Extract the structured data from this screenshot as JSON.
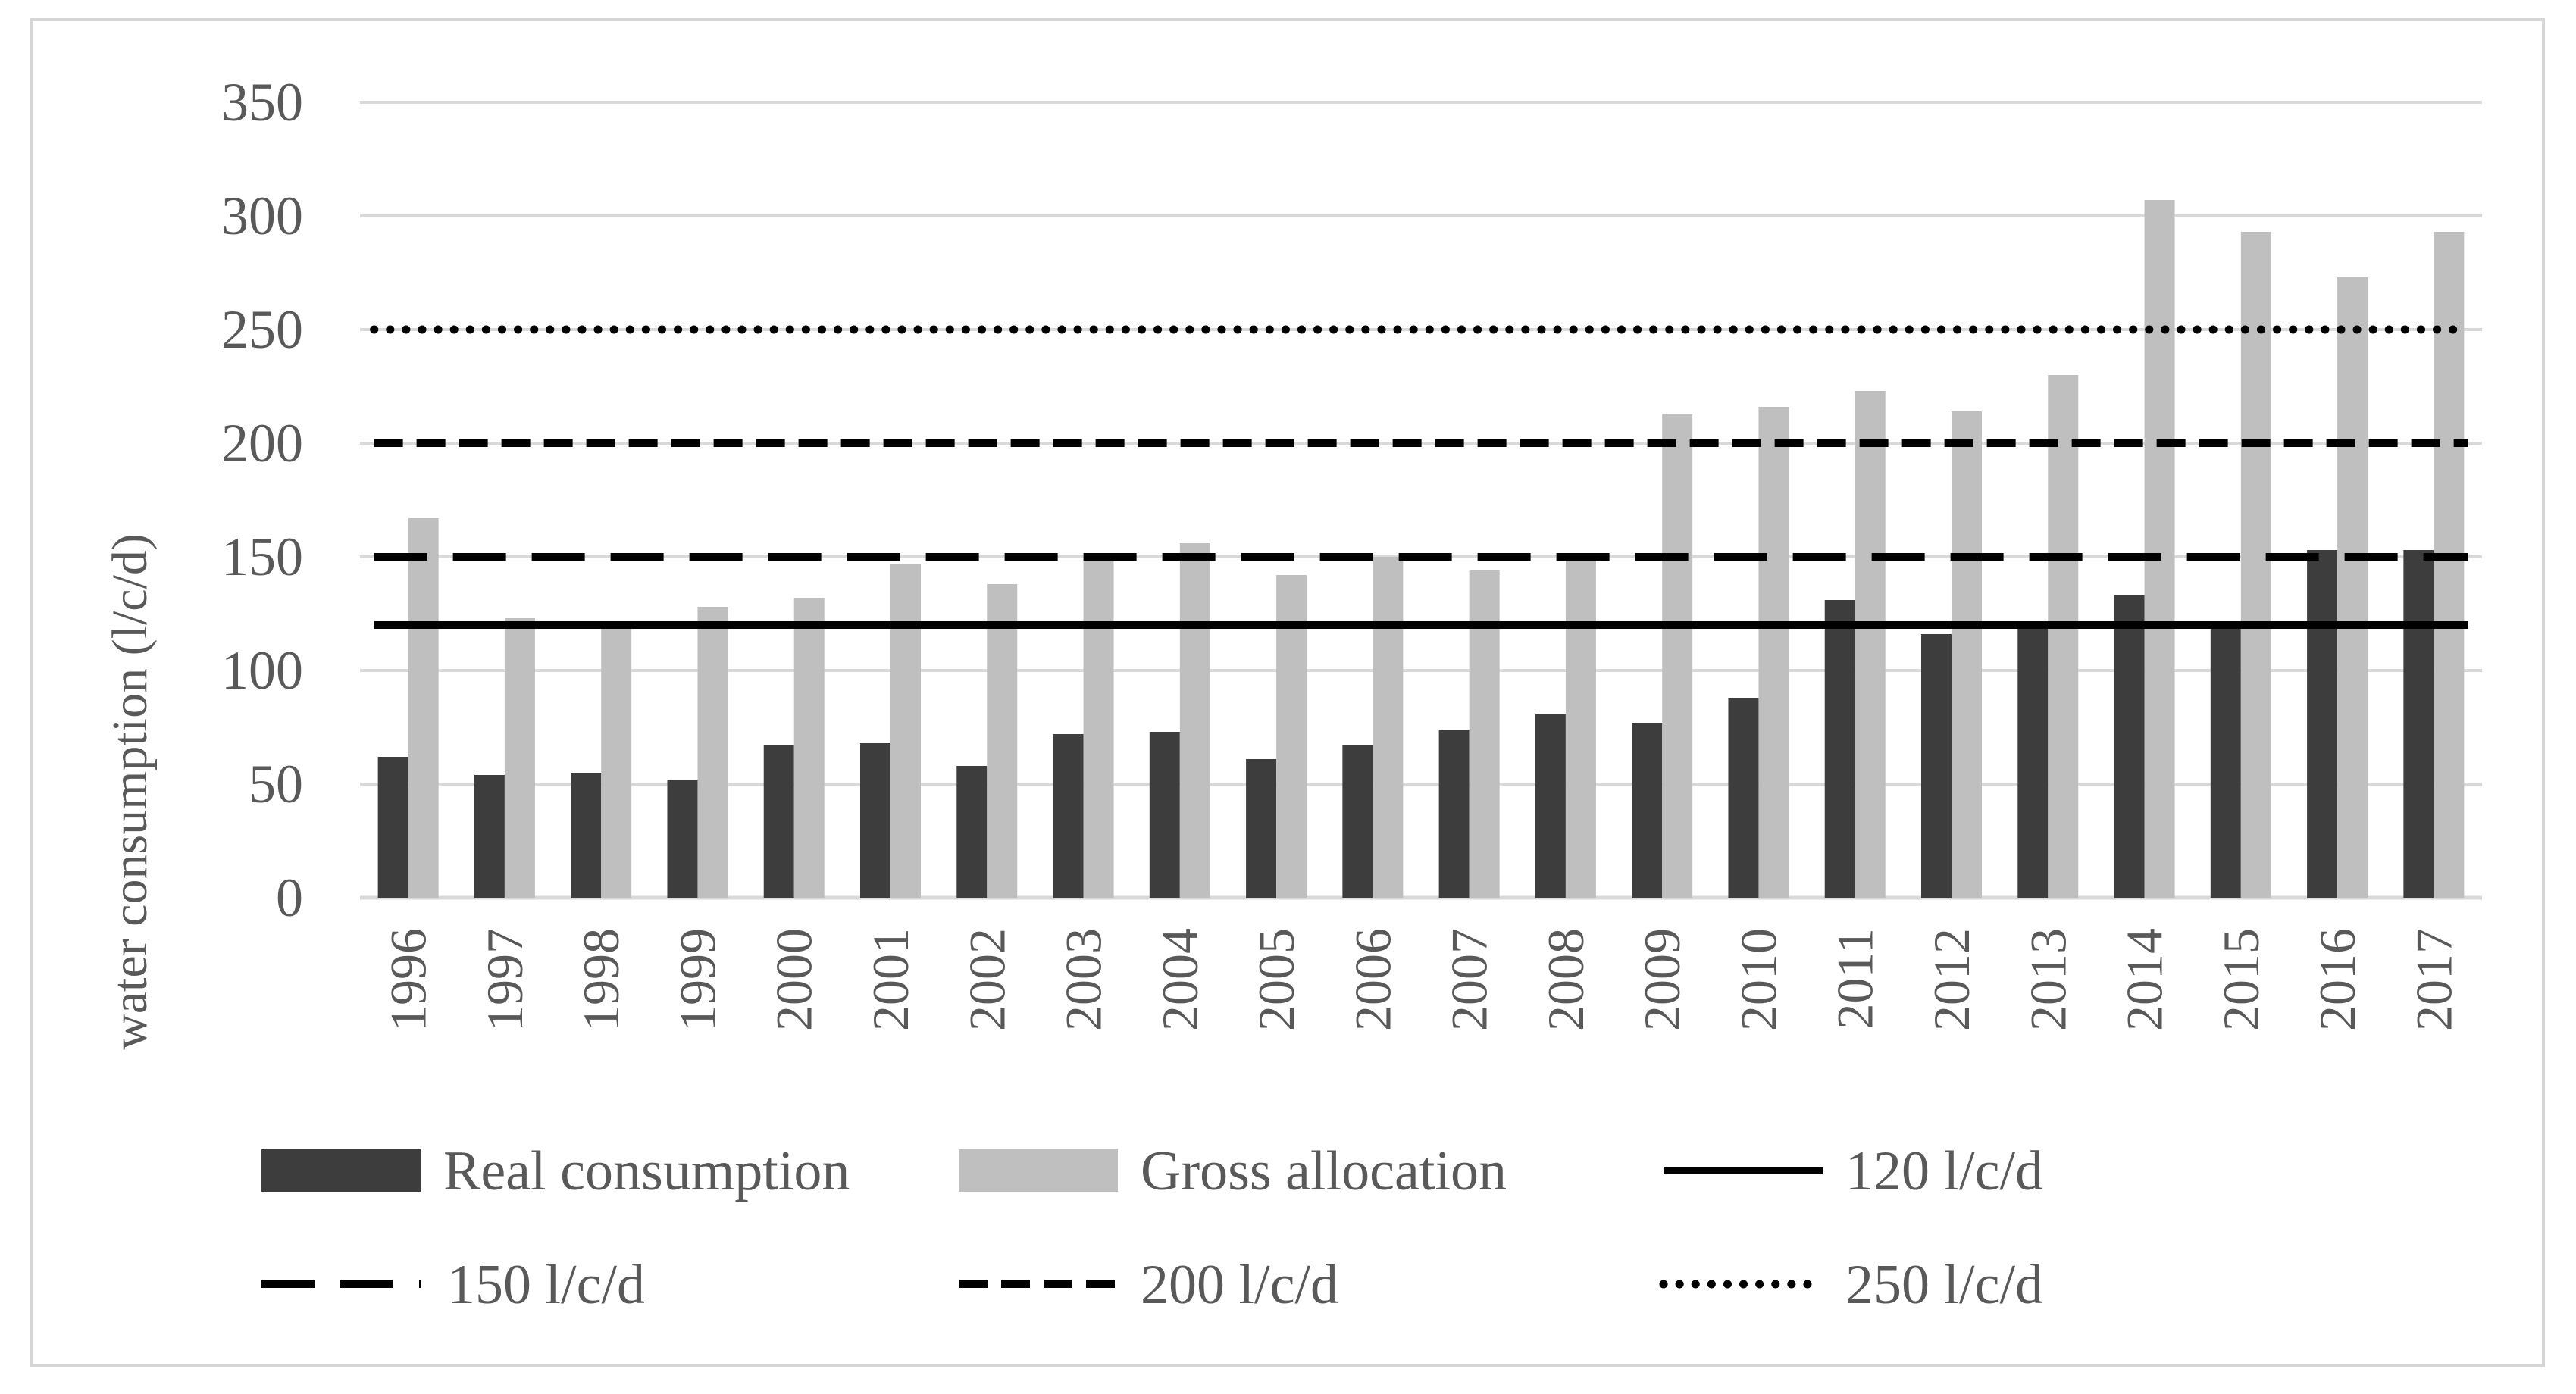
{
  "chart_data": {
    "type": "bar",
    "title": "",
    "xlabel": "",
    "ylabel": "water consumption (l/c/d)",
    "ylim": [
      0,
      350
    ],
    "yticks": [
      0,
      50,
      100,
      150,
      200,
      250,
      300,
      350
    ],
    "grid": true,
    "legend_position": "bottom",
    "categories": [
      "1996",
      "1997",
      "1998",
      "1999",
      "2000",
      "2001",
      "2002",
      "2003",
      "2004",
      "2005",
      "2006",
      "2007",
      "2008",
      "2009",
      "2010",
      "2011",
      "2012",
      "2013",
      "2014",
      "2015",
      "2016",
      "2017"
    ],
    "series": [
      {
        "name": "Real consumption",
        "type": "bar",
        "color": "#3d3d3d",
        "values": [
          62,
          54,
          55,
          52,
          67,
          68,
          58,
          72,
          73,
          61,
          67,
          74,
          81,
          77,
          88,
          131,
          116,
          120,
          133,
          120,
          153,
          153
        ]
      },
      {
        "name": "Gross allocation",
        "type": "bar",
        "color": "#bfbfbf",
        "values": [
          167,
          123,
          121,
          128,
          132,
          147,
          138,
          150,
          156,
          142,
          150,
          144,
          149,
          213,
          216,
          223,
          214,
          230,
          307,
          293,
          273,
          293
        ]
      }
    ],
    "reference_lines": [
      {
        "name": "120 l/c/d",
        "value": 120,
        "style": "solid",
        "color": "#000000"
      },
      {
        "name": "150 l/c/d",
        "value": 150,
        "style": "long-dash",
        "color": "#000000"
      },
      {
        "name": "200 l/c/d",
        "value": 200,
        "style": "dash",
        "color": "#000000"
      },
      {
        "name": "250 l/c/d",
        "value": 250,
        "style": "dot",
        "color": "#000000"
      }
    ],
    "colors": {
      "grid": "#d9d9d9",
      "text": "#595959"
    }
  }
}
